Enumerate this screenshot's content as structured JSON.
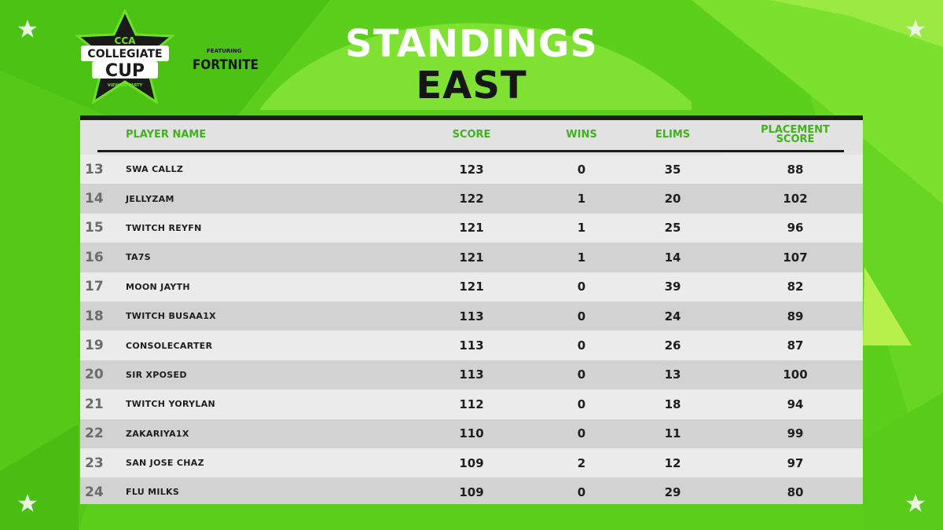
{
  "header": {
    "title": "STANDINGS",
    "region": "EAST"
  },
  "logos": {
    "cca_text_top": "CCA",
    "cca_text_main_1": "COLLEGIATE",
    "cca_text_main_2": "CUP",
    "cca_text_sub": "VIEWING PARTY",
    "featuring": "FEATURING",
    "fortnite": "FORTNITE"
  },
  "table": {
    "columns": {
      "name": "PLAYER NAME",
      "score": "SCORE",
      "wins": "WINS",
      "elims": "ELIMS",
      "placement_1": "PLACEMENT",
      "placement_2": "SCORE"
    },
    "rows": [
      {
        "rank": "13",
        "name": "SWA CALLZ",
        "score": "123",
        "wins": "0",
        "elims": "35",
        "placement": "88"
      },
      {
        "rank": "14",
        "name": "JELLYZAM",
        "score": "122",
        "wins": "1",
        "elims": "20",
        "placement": "102"
      },
      {
        "rank": "15",
        "name": "TWITCH REYFN",
        "score": "121",
        "wins": "1",
        "elims": "25",
        "placement": "96"
      },
      {
        "rank": "16",
        "name": "TA7S",
        "score": "121",
        "wins": "1",
        "elims": "14",
        "placement": "107"
      },
      {
        "rank": "17",
        "name": "MOON JAYTH",
        "score": "121",
        "wins": "0",
        "elims": "39",
        "placement": "82"
      },
      {
        "rank": "18",
        "name": "TWITCH BUSAA1X",
        "score": "113",
        "wins": "0",
        "elims": "24",
        "placement": "89"
      },
      {
        "rank": "19",
        "name": "CONSOLECARTER",
        "score": "113",
        "wins": "0",
        "elims": "26",
        "placement": "87"
      },
      {
        "rank": "20",
        "name": "SIR XPOSED",
        "score": "113",
        "wins": "0",
        "elims": "13",
        "placement": "100"
      },
      {
        "rank": "21",
        "name": "TWITCH YORYLAN",
        "score": "112",
        "wins": "0",
        "elims": "18",
        "placement": "94"
      },
      {
        "rank": "22",
        "name": "ZAKARIYA1X",
        "score": "110",
        "wins": "0",
        "elims": "11",
        "placement": "99"
      },
      {
        "rank": "23",
        "name": "SAN JOSE CHAZ",
        "score": "109",
        "wins": "2",
        "elims": "12",
        "placement": "97"
      },
      {
        "rank": "24",
        "name": "FLU MILKS",
        "score": "109",
        "wins": "0",
        "elims": "29",
        "placement": "80"
      }
    ]
  },
  "colors": {
    "accent_green": "#3fb21c",
    "background_green": "#5fd21a",
    "dark": "#1b1b1b"
  },
  "icons": [
    "star-icon",
    "cca-logo",
    "fortnite-logo"
  ]
}
